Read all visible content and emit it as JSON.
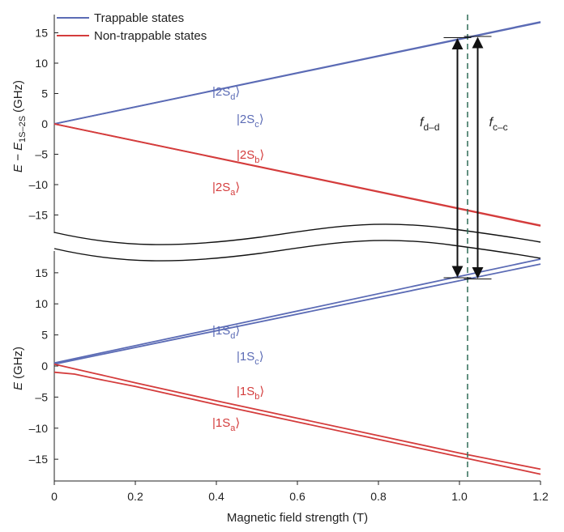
{
  "chart_data": {
    "type": "line",
    "xlabel": "Magnetic field strength (T)",
    "x_ticks": [
      "0",
      "0.2",
      "0.4",
      "0.6",
      "0.8",
      "1.0",
      "1.2"
    ],
    "xlim": [
      0,
      1.2
    ],
    "legend": {
      "placement": "top-left",
      "entries": [
        {
          "label": "Trappable states",
          "color": "#5b6bb5"
        },
        {
          "label": "Non-trappable states",
          "color": "#d43c3c"
        }
      ]
    },
    "panels": [
      {
        "name": "top",
        "ylabel_main": "E − E",
        "ylabel_sub": "1S–2S",
        "ylabel_unit": "(GHz)",
        "ylim": [
          -18,
          18
        ],
        "y_ticks": [
          15,
          10,
          5,
          0,
          -5,
          -10,
          -15
        ],
        "series": [
          {
            "label_main": "|2S",
            "label_sub": "d",
            "label_close": "⟩",
            "type": "trappable",
            "x": [
              0,
              1.2
            ],
            "y": [
              0,
              16.8
            ]
          },
          {
            "label_main": "|2S",
            "label_sub": "c",
            "label_close": "⟩",
            "type": "trappable",
            "x": [
              0,
              1.2
            ],
            "y": [
              0,
              16.7
            ]
          },
          {
            "label_main": "|2S",
            "label_sub": "b",
            "label_close": "⟩",
            "type": "non-trappable",
            "x": [
              0,
              1.2
            ],
            "y": [
              0,
              -16.8
            ]
          },
          {
            "label_main": "|2S",
            "label_sub": "a",
            "label_close": "⟩",
            "type": "non-trappable",
            "x": [
              0,
              1.2
            ],
            "y": [
              0,
              -16.7
            ]
          }
        ]
      },
      {
        "name": "bottom",
        "ylabel_main": "E",
        "ylabel_unit": "(GHz)",
        "ylim": [
          -18.5,
          18.5
        ],
        "y_ticks": [
          15,
          10,
          5,
          0,
          -5,
          -10,
          -15
        ],
        "series": [
          {
            "label_main": "|1S",
            "label_sub": "d",
            "label_close": "⟩",
            "type": "trappable",
            "x": [
              0,
              1.2
            ],
            "y": [
              0.5,
              17.2
            ]
          },
          {
            "label_main": "|1S",
            "label_sub": "c",
            "label_close": "⟩",
            "type": "trappable",
            "x": [
              0,
              1.2
            ],
            "y": [
              0.3,
              16.4
            ]
          },
          {
            "label_main": "|1S",
            "label_sub": "b",
            "label_close": "⟩",
            "type": "non-trappable",
            "x": [
              0,
              0.1,
              0.2,
              0.4,
              0.6,
              0.8,
              1.0,
              1.2
            ],
            "y": [
              0.3,
              -1.2,
              -2.7,
              -5.6,
              -8.4,
              -11.2,
              -14.0,
              -16.6
            ]
          },
          {
            "label_main": "|1S",
            "label_sub": "a",
            "label_close": "⟩",
            "type": "non-trappable",
            "x": [
              0,
              0.05,
              0.1,
              0.2,
              0.4,
              0.6,
              0.8,
              1.0,
              1.2
            ],
            "y": [
              -1.0,
              -1.3,
              -2.0,
              -3.3,
              -6.2,
              -9.0,
              -11.8,
              -14.6,
              -17.4
            ]
          }
        ]
      }
    ],
    "reference_line": {
      "x": 1.02,
      "style": "dashed",
      "color": "#2e6b57"
    },
    "transitions": [
      {
        "label_main": "f",
        "label_sub": "d–d",
        "x": 0.995,
        "y_lower": 14.2,
        "y_upper": 14.2
      },
      {
        "label_main": "f",
        "label_sub": "c–c",
        "x": 1.045,
        "y_lower": 14.0,
        "y_upper": 14.4
      }
    ]
  }
}
